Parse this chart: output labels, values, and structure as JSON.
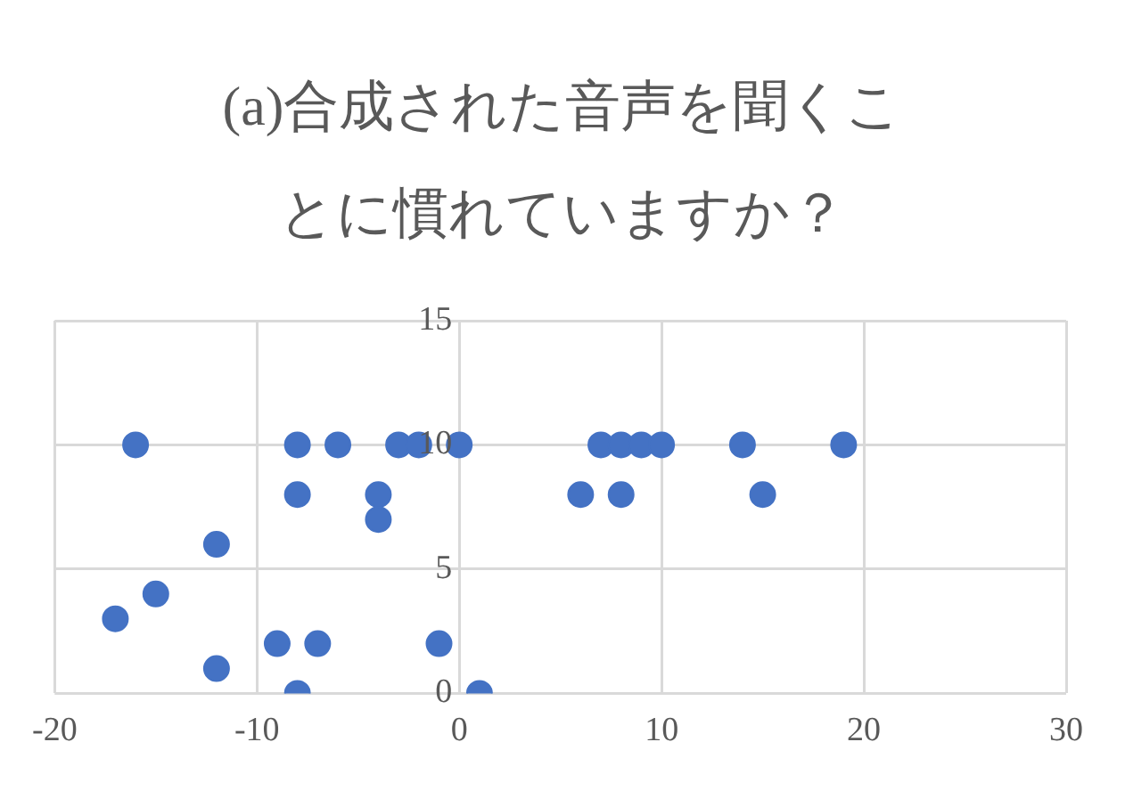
{
  "chart_data": {
    "type": "scatter",
    "title": "(a)合成された音声を聞くことに慣れていますか？",
    "x": [
      -16,
      -8,
      -6,
      -3,
      -2,
      0,
      7,
      8,
      9,
      10,
      14,
      19,
      -8,
      -4,
      6,
      8,
      15,
      -4,
      -12,
      -15,
      -17,
      -9,
      -7,
      -1,
      -12,
      -8,
      1
    ],
    "values": [
      10,
      10,
      10,
      10,
      10,
      10,
      10,
      10,
      10,
      10,
      10,
      10,
      8,
      8,
      8,
      8,
      8,
      7,
      6,
      4,
      3,
      2,
      2,
      2,
      1,
      0,
      0
    ],
    "color": "#4472c4",
    "marker": "circle",
    "xlim": [
      -20,
      30
    ],
    "xticks": [
      -20,
      -10,
      0,
      10,
      20,
      30
    ],
    "ylim": [
      0,
      15
    ],
    "yticks": [
      0,
      5,
      10,
      15
    ],
    "grid": true,
    "legend": false
  }
}
